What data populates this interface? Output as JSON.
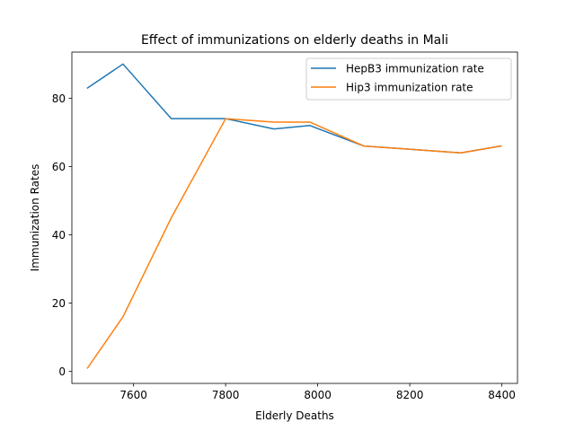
{
  "chart_data": {
    "type": "line",
    "title": "Effect of immunizations on elderly deaths in Mali",
    "xlabel": "Elderly Deaths",
    "ylabel": "Immunization Rates",
    "xlim": [
      7466,
      8434
    ],
    "ylim": [
      -3.5,
      93.5
    ],
    "xticks": [
      7600,
      7800,
      8000,
      8200,
      8400
    ],
    "yticks": [
      0,
      20,
      40,
      60,
      80
    ],
    "grid": false,
    "legend_position": "top-right",
    "series": [
      {
        "name": "HepB3 immunization rate",
        "color": "#1f77b4",
        "x": [
          7500,
          7577,
          7682,
          7800,
          7905,
          7983,
          8100,
          8205,
          8311,
          8398
        ],
        "y": [
          83,
          90,
          74,
          74,
          71,
          72,
          66,
          65,
          64,
          66
        ]
      },
      {
        "name": "Hip3 immunization rate",
        "color": "#ff7f0e",
        "x": [
          7500,
          7577,
          7682,
          7800,
          7905,
          7983,
          8100,
          8205,
          8311,
          8398
        ],
        "y": [
          1,
          16,
          45,
          74,
          73,
          73,
          66,
          65,
          64,
          66
        ]
      }
    ]
  }
}
